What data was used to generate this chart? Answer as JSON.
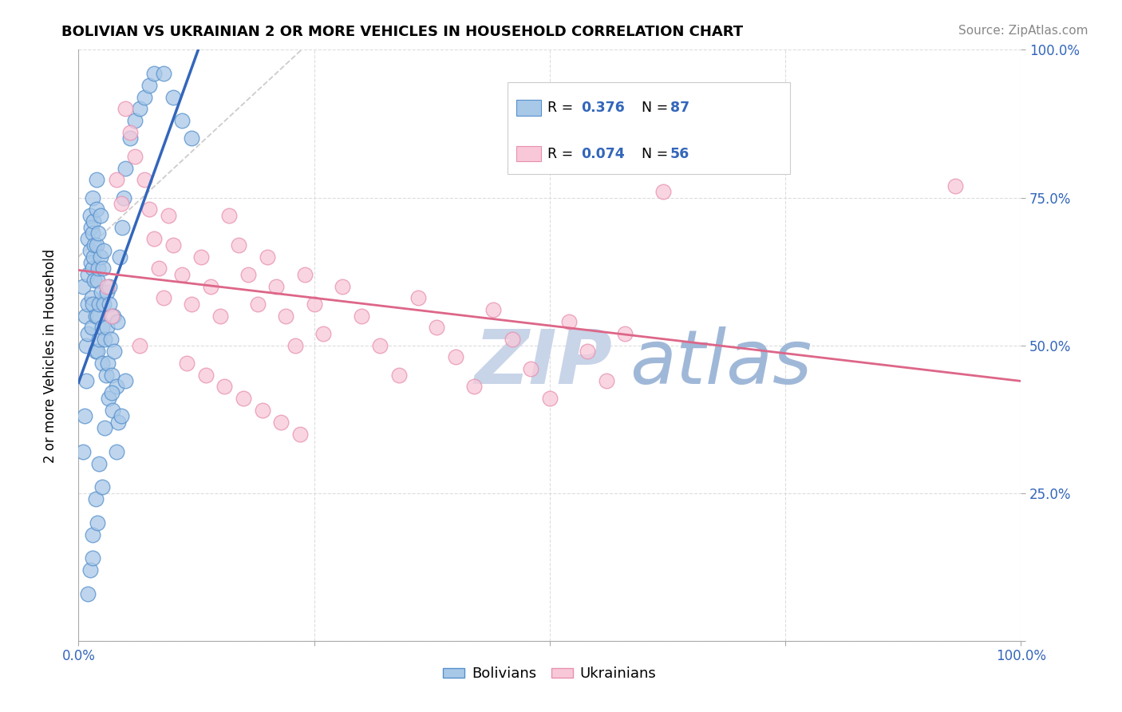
{
  "title": "BOLIVIAN VS UKRAINIAN 2 OR MORE VEHICLES IN HOUSEHOLD CORRELATION CHART",
  "source": "Source: ZipAtlas.com",
  "ylabel": "2 or more Vehicles in Household",
  "xlim": [
    0.0,
    1.0
  ],
  "ylim": [
    0.0,
    1.0
  ],
  "xticks": [
    0.0,
    0.25,
    0.5,
    0.75,
    1.0
  ],
  "yticks": [
    0.0,
    0.25,
    0.5,
    0.75,
    1.0
  ],
  "xticklabels": [
    "0.0%",
    "",
    "",
    "",
    "100.0%"
  ],
  "yticklabels_right": [
    "",
    "25.0%",
    "50.0%",
    "75.0%",
    "100.0%"
  ],
  "blue_R": 0.376,
  "blue_N": 87,
  "pink_R": 0.074,
  "pink_N": 56,
  "blue_color": "#a8c8e8",
  "blue_edge": "#5590cc",
  "pink_color": "#f8c8d8",
  "pink_edge": "#e890b0",
  "blue_line_color": "#3366bb",
  "pink_line_color": "#dd6688",
  "ref_line_color": "#cccccc",
  "grid_color": "#dddddd",
  "background_color": "#ffffff",
  "legend_color": "#3366bb",
  "watermark_zip_color": "#c8d4e8",
  "watermark_atlas_color": "#a0b8d8",
  "blue_scatter_x": [
    0.005,
    0.007,
    0.008,
    0.01,
    0.01,
    0.01,
    0.01,
    0.012,
    0.012,
    0.013,
    0.013,
    0.014,
    0.014,
    0.015,
    0.015,
    0.015,
    0.015,
    0.016,
    0.016,
    0.017,
    0.017,
    0.018,
    0.018,
    0.019,
    0.019,
    0.02,
    0.02,
    0.02,
    0.021,
    0.021,
    0.022,
    0.022,
    0.023,
    0.024,
    0.025,
    0.025,
    0.026,
    0.027,
    0.028,
    0.029,
    0.03,
    0.03,
    0.031,
    0.032,
    0.033,
    0.034,
    0.035,
    0.036,
    0.037,
    0.038,
    0.04,
    0.042,
    0.044,
    0.046,
    0.048,
    0.05,
    0.055,
    0.06,
    0.065,
    0.07,
    0.075,
    0.08,
    0.09,
    0.1,
    0.11,
    0.12,
    0.035,
    0.028,
    0.022,
    0.018,
    0.015,
    0.012,
    0.04,
    0.045,
    0.05,
    0.025,
    0.02,
    0.015,
    0.01,
    0.008,
    0.006,
    0.005,
    0.019,
    0.023,
    0.027,
    0.033,
    0.041
  ],
  "blue_scatter_y": [
    0.6,
    0.55,
    0.5,
    0.68,
    0.62,
    0.57,
    0.52,
    0.72,
    0.66,
    0.7,
    0.64,
    0.58,
    0.53,
    0.75,
    0.69,
    0.63,
    0.57,
    0.71,
    0.65,
    0.67,
    0.61,
    0.55,
    0.49,
    0.73,
    0.67,
    0.61,
    0.55,
    0.49,
    0.69,
    0.63,
    0.57,
    0.51,
    0.65,
    0.59,
    0.53,
    0.47,
    0.63,
    0.57,
    0.51,
    0.45,
    0.59,
    0.53,
    0.47,
    0.41,
    0.57,
    0.51,
    0.45,
    0.39,
    0.55,
    0.49,
    0.43,
    0.37,
    0.65,
    0.7,
    0.75,
    0.8,
    0.85,
    0.88,
    0.9,
    0.92,
    0.94,
    0.96,
    0.96,
    0.92,
    0.88,
    0.85,
    0.42,
    0.36,
    0.3,
    0.24,
    0.18,
    0.12,
    0.32,
    0.38,
    0.44,
    0.26,
    0.2,
    0.14,
    0.08,
    0.44,
    0.38,
    0.32,
    0.78,
    0.72,
    0.66,
    0.6,
    0.54
  ],
  "pink_scatter_x": [
    0.05,
    0.055,
    0.06,
    0.04,
    0.045,
    0.07,
    0.075,
    0.08,
    0.085,
    0.09,
    0.095,
    0.1,
    0.11,
    0.12,
    0.13,
    0.14,
    0.15,
    0.16,
    0.17,
    0.18,
    0.19,
    0.2,
    0.21,
    0.22,
    0.23,
    0.24,
    0.25,
    0.26,
    0.28,
    0.3,
    0.32,
    0.34,
    0.36,
    0.38,
    0.4,
    0.42,
    0.44,
    0.46,
    0.48,
    0.5,
    0.52,
    0.54,
    0.56,
    0.58,
    0.62,
    0.03,
    0.035,
    0.065,
    0.115,
    0.135,
    0.155,
    0.175,
    0.195,
    0.215,
    0.235,
    0.93
  ],
  "pink_scatter_y": [
    0.9,
    0.86,
    0.82,
    0.78,
    0.74,
    0.78,
    0.73,
    0.68,
    0.63,
    0.58,
    0.72,
    0.67,
    0.62,
    0.57,
    0.65,
    0.6,
    0.55,
    0.72,
    0.67,
    0.62,
    0.57,
    0.65,
    0.6,
    0.55,
    0.5,
    0.62,
    0.57,
    0.52,
    0.6,
    0.55,
    0.5,
    0.45,
    0.58,
    0.53,
    0.48,
    0.43,
    0.56,
    0.51,
    0.46,
    0.41,
    0.54,
    0.49,
    0.44,
    0.52,
    0.76,
    0.6,
    0.55,
    0.5,
    0.47,
    0.45,
    0.43,
    0.41,
    0.39,
    0.37,
    0.35,
    0.77
  ]
}
